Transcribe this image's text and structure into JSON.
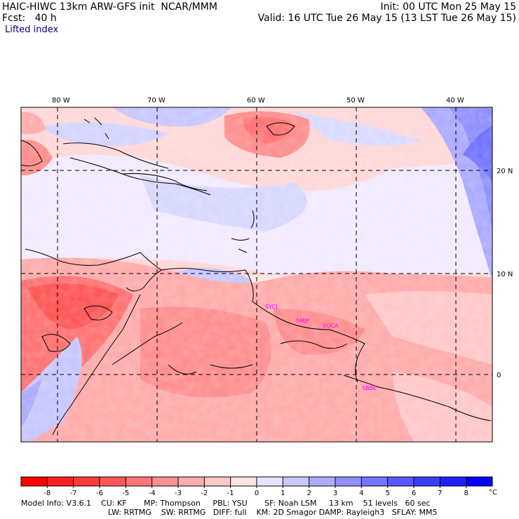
{
  "header": {
    "title": "HAIC-HIWC 13km ARW-GFS init  NCAR/MMM",
    "fcst": "Fcst:   40 h",
    "init": "Init: 00 UTC Mon 25 May 15",
    "valid": "Valid: 16 UTC Tue 26 May 15 (13 LST Tue 26 May 15)",
    "field": "Lifted index"
  },
  "map": {
    "lon_labels": [
      "80 W",
      "70 W",
      "60 W",
      "50 W",
      "40 W"
    ],
    "lat_labels": [
      "20 N",
      "10 N",
      "0"
    ],
    "stations": [
      "SBBE",
      "SMJP",
      "SOCA",
      "SYCJ"
    ]
  },
  "colorbar": {
    "unit": "°C",
    "ticks": [
      "-8",
      "-7",
      "-6",
      "-5",
      "-4",
      "-3",
      "-2",
      "-1",
      "0",
      "1",
      "2",
      "3",
      "4",
      "5",
      "6",
      "7",
      "8"
    ],
    "colors": [
      "#ff0000",
      "#ff2020",
      "#ff3c3c",
      "#ff5858",
      "#ff7474",
      "#ff9090",
      "#ffacac",
      "#ffc8c8",
      "#ffe4e4",
      "#e4e4ff",
      "#c8c8ff",
      "#acacff",
      "#9090ff",
      "#7474ff",
      "#5858ff",
      "#3c3cff",
      "#2020ff",
      "#0000ff"
    ]
  },
  "footer": {
    "line1": "Model Info: V3.6.1    CU: KF       MP: Thompson     PBL: YSU       SF: Noah LSM     13 km    51 levels   60 sec",
    "line2": "LW: RRTMG    SW: RRTMG   DIFF: full    KM: 2D Smagor DAMP: Rayleigh3   SFLAY: MM5"
  }
}
